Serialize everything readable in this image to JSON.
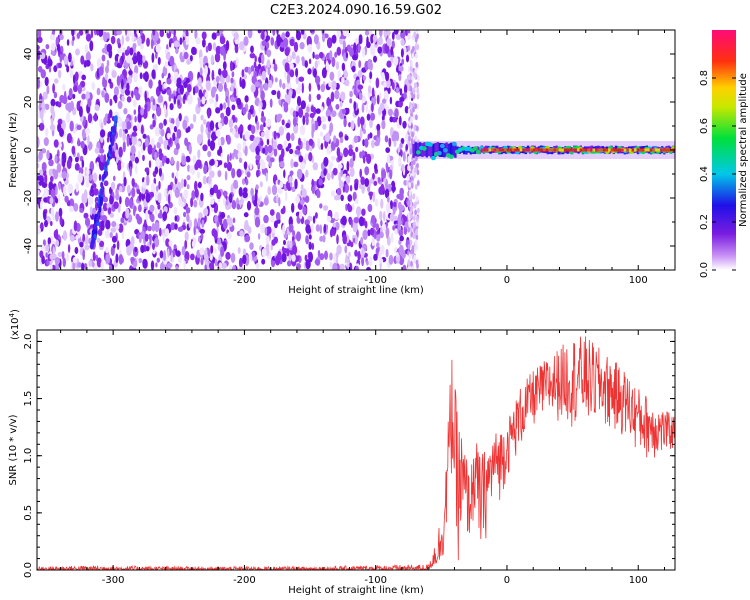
{
  "title": "C2E3.2024.090.16.59.G02",
  "chart_data": [
    {
      "type": "heatmap",
      "xlabel": "Height of straight line (km)",
      "ylabel": "Frequency (Hz)",
      "xlim": [
        -358,
        128
      ],
      "ylim": [
        -50,
        50
      ],
      "xticks": [
        -300,
        -200,
        -100,
        0,
        100
      ],
      "xtick_labels": [
        "-300",
        "-200",
        "-100",
        "0",
        "100"
      ],
      "yticks": [
        -40,
        -20,
        0,
        20,
        40
      ],
      "ytick_labels": [
        "-40",
        "-20",
        "0",
        "20",
        "40"
      ],
      "colorbar": {
        "label": "Normalized spectral amplitude",
        "range": [
          0,
          1
        ],
        "ticks": [
          0.0,
          0.2,
          0.4,
          0.6,
          0.8
        ],
        "tick_labels": [
          "0.0",
          "0.2",
          "0.4",
          "0.6",
          "0.8"
        ],
        "colormap": "rainbow (white-violet-blue-cyan-green-yellow-red-magenta)"
      },
      "features": {
        "noise_region_x": [
          -358,
          -72
        ],
        "signal_line_frequency": 0,
        "signal_start_x": -72,
        "streak": {
          "x_start": -316,
          "y_start": -40,
          "x_end": -298,
          "y_end": 14
        }
      }
    },
    {
      "type": "line",
      "xlabel": "Height of straight line (km)",
      "ylabel": "SNR (10 * v/v)",
      "ymultiplier_label": "(x10",
      "ymultiplier_exp": "4",
      "ymultiplier_close": ")",
      "xlim": [
        -358,
        128
      ],
      "ylim": [
        0,
        2.1
      ],
      "xticks": [
        -300,
        -200,
        -100,
        0,
        100
      ],
      "xtick_labels": [
        "-300",
        "-200",
        "-100",
        "0",
        "100"
      ],
      "yticks": [
        0,
        0.5,
        1.0,
        1.5,
        2.0
      ],
      "ytick_labels": [
        "0.0",
        "0.5",
        "1.0",
        "1.5",
        "2.0"
      ],
      "color": "#ee3333",
      "envelope": {
        "x": [
          -358,
          -320,
          -250,
          -150,
          -60,
          -48,
          -42,
          -38,
          -32,
          -28,
          -25,
          -20,
          -15,
          -10,
          -5,
          0,
          10,
          20,
          30,
          40,
          50,
          60,
          70,
          80,
          90,
          100,
          110,
          120,
          128
        ],
        "min": [
          0,
          0,
          0,
          0,
          0,
          0.1,
          0.8,
          0.05,
          0.1,
          0.3,
          0.4,
          0.1,
          0.3,
          0.6,
          0.6,
          0.8,
          1.05,
          1.25,
          1.3,
          1.3,
          1.25,
          1.25,
          1.25,
          1.2,
          1.15,
          1.0,
          0.95,
          1.0,
          1.05
        ],
        "max": [
          0.03,
          0.04,
          0.03,
          0.03,
          0.05,
          0.6,
          1.95,
          1.4,
          1.1,
          0.8,
          1.2,
          1.0,
          1.1,
          1.2,
          1.25,
          1.3,
          1.6,
          1.75,
          1.85,
          1.95,
          2.05,
          2.05,
          1.95,
          1.85,
          1.75,
          1.6,
          1.5,
          1.4,
          1.35
        ]
      }
    }
  ]
}
